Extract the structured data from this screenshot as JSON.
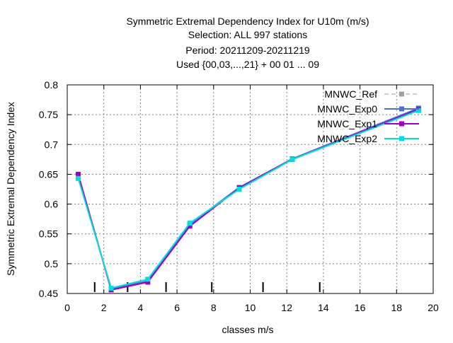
{
  "chart_data": {
    "type": "line",
    "title_lines": [
      "Symmetric Extremal Dependency Index  for U10m (m/s)",
      "Selection: ALL     997 stations",
      "Period: 20211209-20211219",
      "Used {00,03,...,21} + 00 01 ... 09"
    ],
    "xlabel": "classes m/s",
    "ylabel": "Symmetric Extremal Dependency Index",
    "xlim": [
      0,
      20
    ],
    "ylim": [
      0.45,
      0.8
    ],
    "xticks": [
      0,
      2,
      4,
      6,
      8,
      10,
      12,
      14,
      16,
      18,
      20
    ],
    "yticks": [
      0.45,
      0.5,
      0.55,
      0.6,
      0.65,
      0.7,
      0.75,
      0.8
    ],
    "grid": true,
    "legend_position": "top-right",
    "class_bounds": [
      1.5,
      3.3,
      5.4,
      7.9,
      10.7,
      13.8
    ],
    "series": [
      {
        "name": "MNWC_Ref",
        "color": "#a0a0a0",
        "dashed": true,
        "x": [],
        "y": []
      },
      {
        "name": "MNWC_Exp0",
        "color": "#4f6fcf",
        "dashed": false,
        "x": [
          0.6,
          2.4,
          4.4,
          6.7,
          9.4,
          12.3,
          19.2
        ],
        "y": [
          0.647,
          0.458,
          0.471,
          0.566,
          0.628,
          0.676,
          0.761
        ]
      },
      {
        "name": "MNWC_Exp1",
        "color": "#9b00c8",
        "dashed": false,
        "x": [
          0.6,
          2.4,
          4.4,
          6.7,
          9.4,
          12.3,
          19.2
        ],
        "y": [
          0.65,
          0.456,
          0.469,
          0.563,
          0.627,
          0.675,
          0.759
        ]
      },
      {
        "name": "MNWC_Exp2",
        "color": "#00dede",
        "dashed": false,
        "x": [
          0.6,
          2.4,
          4.4,
          6.7,
          9.4,
          12.3,
          19.2
        ],
        "y": [
          0.643,
          0.459,
          0.474,
          0.568,
          0.625,
          0.675,
          0.757
        ]
      }
    ]
  }
}
